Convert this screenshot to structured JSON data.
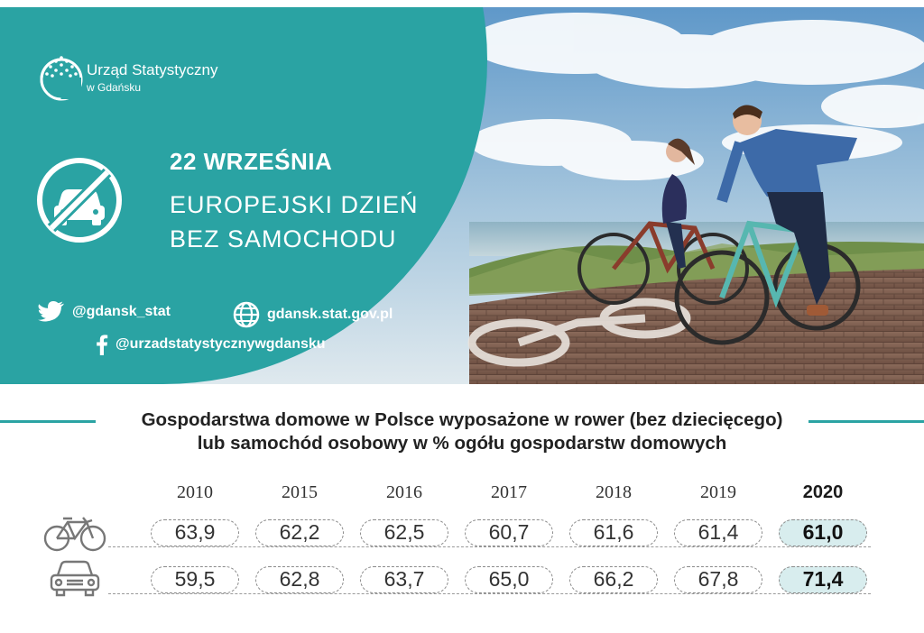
{
  "header": {
    "logo": {
      "name": "Urząd Statystyczny",
      "sub": "w Gdańsku"
    },
    "event": {
      "date": "22 WRZEŚNIA",
      "line1": "EUROPEJSKI DZIEŃ",
      "line2": "BEZ SAMOCHODU"
    },
    "social": {
      "twitter": "@gdansk_stat",
      "website": "gdansk.stat.gov.pl",
      "facebook": "@urzadstatystycznywgdansku"
    },
    "colors": {
      "teal": "#2aa3a3"
    }
  },
  "section": {
    "title_line1": "Gospodarstwa domowe w Polsce wyposażone w rower (bez dziecięcego)",
    "title_line2": "lub samochód osobowy w % ogółu gospodarstw domowych"
  },
  "table": {
    "years": [
      "2010",
      "2015",
      "2016",
      "2017",
      "2018",
      "2019",
      "2020"
    ],
    "rows": [
      {
        "icon": "bicycle-icon",
        "values": [
          "63,9",
          "62,2",
          "62,5",
          "60,7",
          "61,6",
          "61,4",
          "61,0"
        ]
      },
      {
        "icon": "car-icon",
        "values": [
          "59,5",
          "62,8",
          "63,7",
          "65,0",
          "66,2",
          "67,8",
          "71,4"
        ]
      }
    ],
    "highlight_year": "2020",
    "highlight_color": "#d8edee"
  }
}
